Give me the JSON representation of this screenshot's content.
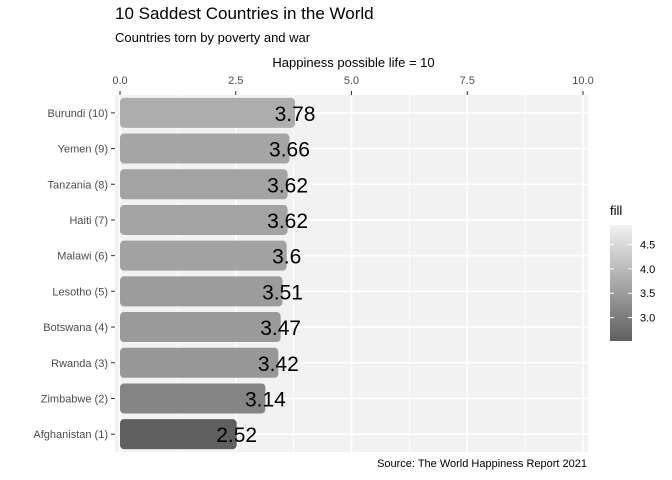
{
  "chart_data": {
    "type": "bar",
    "orientation": "horizontal",
    "title": "10 Saddest Countries in the World",
    "subtitle": "Countries torn by poverty and war",
    "xlabel": "Happiness possible life = 10",
    "axis_position": "top",
    "caption": "Source: The World Happiness Report 2021",
    "categories": [
      "Burundi (10)",
      "Yemen (9)",
      "Tanzania (8)",
      "Haiti (7)",
      "Malawi (6)",
      "Lesotho (5)",
      "Botswana (4)",
      "Rwanda (3)",
      "Zimbabwe (2)",
      "Afghanistan (1)"
    ],
    "values": [
      3.78,
      3.66,
      3.62,
      3.62,
      3.6,
      3.51,
      3.47,
      3.42,
      3.14,
      2.52
    ],
    "data_labels": [
      "3.78",
      "3.66",
      "3.62",
      "3.62",
      "3.6",
      "3.51",
      "3.47",
      "3.42",
      "3.14",
      "2.52"
    ],
    "xlim": [
      0,
      10
    ],
    "x_ticks": [
      "0.0",
      "2.5",
      "5.0",
      "7.5",
      "10.0"
    ],
    "x_tick_values": [
      0,
      2.5,
      5,
      7.5,
      10
    ],
    "grid": true,
    "panel_background": "#f2f2f2",
    "legend": {
      "title": "fill",
      "placement": "right",
      "ticks": [
        "4.5",
        "4.0",
        "3.5",
        "3.0"
      ],
      "tick_values": [
        4.5,
        4.0,
        3.5,
        3.0
      ],
      "range": [
        2.52,
        4.9
      ],
      "color_low": "#5f5f5f",
      "color_high": "#f2f2f2"
    }
  }
}
